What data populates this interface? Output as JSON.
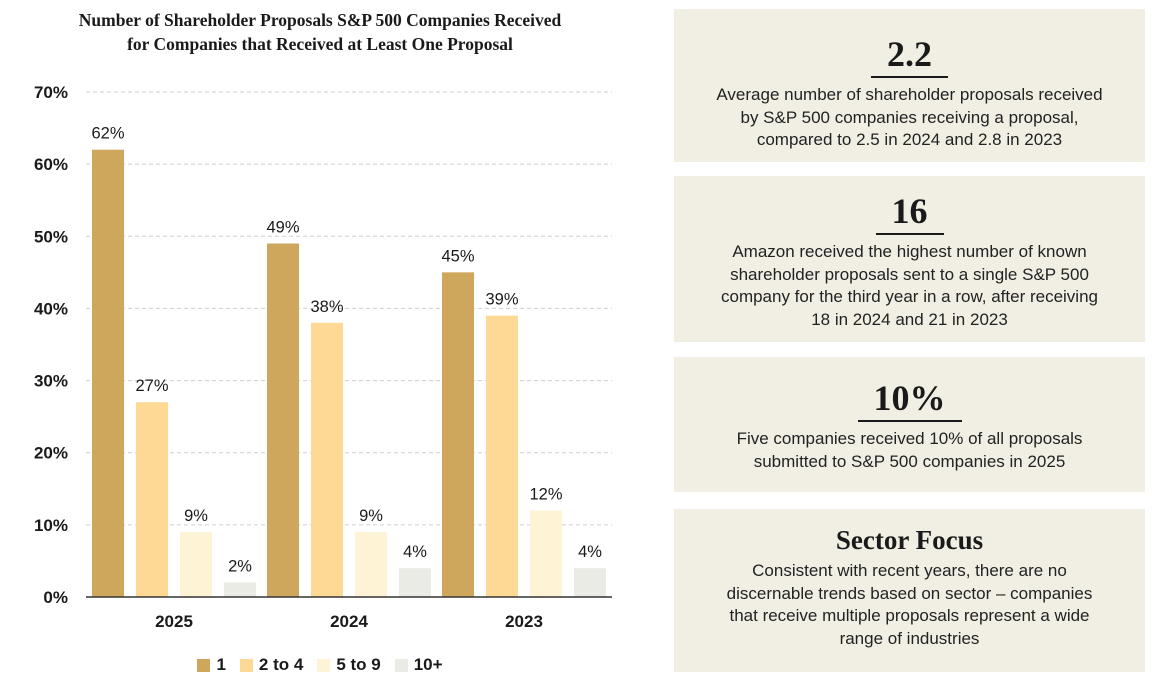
{
  "chart_title": {
    "line1": "Number of Shareholder Proposals S&P 500 Companies Received",
    "line2": "for Companies that Received at Least One Proposal"
  },
  "chart_data": {
    "type": "bar",
    "title": "Number of Shareholder Proposals S&P 500 Companies Received for Companies that Received at Least One Proposal",
    "categories": [
      "2025",
      "2024",
      "2023"
    ],
    "series": [
      {
        "name": "1",
        "values": [
          62,
          49,
          45
        ],
        "color": "#cfa75c"
      },
      {
        "name": "2 to 4",
        "values": [
          27,
          38,
          39
        ],
        "color": "#fdd995"
      },
      {
        "name": "5 to 9",
        "values": [
          9,
          9,
          12
        ],
        "color": "#fef3d5"
      },
      {
        "name": "10+",
        "values": [
          2,
          4,
          4
        ],
        "color": "#ebebe6"
      }
    ],
    "value_labels": [
      [
        "62%",
        "49%",
        "45%"
      ],
      [
        "27%",
        "38%",
        "39%"
      ],
      [
        "9%",
        "9%",
        "12%"
      ],
      [
        "2%",
        "4%",
        "4%"
      ]
    ],
    "yticks": [
      "0%",
      "10%",
      "20%",
      "30%",
      "40%",
      "50%",
      "60%",
      "70%"
    ],
    "ylim": [
      0,
      70
    ],
    "grid": true,
    "legend_position": "bottom"
  },
  "cards": [
    {
      "stat": "2.2",
      "lines": [
        "Average number of shareholder proposals received",
        "by S&P 500 companies receiving a proposal,",
        "compared to 2.5 in 2024 and 2.8 in 2023"
      ]
    },
    {
      "stat": "16",
      "lines": [
        "Amazon received the highest number of known",
        "shareholder proposals sent to a single S&P 500",
        "company for the third year in a row, after receiving",
        "18 in 2024 and 21 in 2023"
      ]
    },
    {
      "stat": "10%",
      "lines": [
        "Five companies received 10% of all proposals",
        "submitted to S&P 500 companies in 2025"
      ]
    },
    {
      "stat": "Sector Focus",
      "lines": [
        "Consistent with recent years, there are no",
        "discernable trends based on sector – companies",
        "that receive multiple proposals represent a wide",
        "range of industries"
      ]
    }
  ]
}
